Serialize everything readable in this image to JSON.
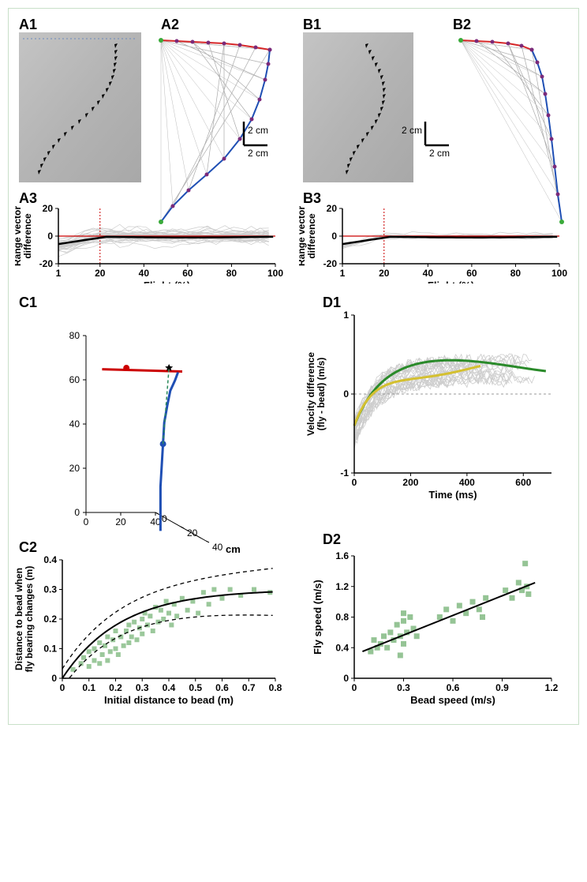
{
  "panelA": {
    "label1": "A1",
    "label2": "A2",
    "label3": "A3",
    "scalebar_x": "2 cm",
    "scalebar_y": "2 cm",
    "trajectory2": {
      "type": "line",
      "red_path": [
        [
          10,
          10
        ],
        [
          30,
          11
        ],
        [
          50,
          12
        ],
        [
          70,
          13
        ],
        [
          90,
          14
        ],
        [
          110,
          16
        ],
        [
          130,
          19
        ],
        [
          148,
          22
        ]
      ],
      "blue_path": [
        [
          148,
          22
        ],
        [
          146,
          40
        ],
        [
          142,
          60
        ],
        [
          135,
          85
        ],
        [
          125,
          110
        ],
        [
          110,
          135
        ],
        [
          90,
          160
        ],
        [
          68,
          180
        ],
        [
          45,
          200
        ],
        [
          25,
          220
        ],
        [
          10,
          240
        ]
      ],
      "red_color": "#d62728",
      "blue_color": "#1f4fb4",
      "marker_color": "#7a2a7a"
    },
    "chart3": {
      "type": "line",
      "xlabel": "Flight (%)",
      "ylabel": "Range vector\ndifference",
      "xlim": [
        1,
        100
      ],
      "ylim": [
        -20,
        20
      ],
      "xticks": [
        1,
        20,
        40,
        60,
        80,
        100
      ],
      "yticks": [
        -20,
        0,
        20
      ],
      "vline_x": 20,
      "vline_color": "#cc0000",
      "hline_y": 0,
      "hline_color": "#cc0000",
      "mean_color": "#000000",
      "trace_color": "#cccccc",
      "n_traces": 40,
      "spread": 18
    }
  },
  "panelB": {
    "label1": "B1",
    "label2": "B2",
    "label3": "B3",
    "scalebar_x": "2 cm",
    "scalebar_y": "2 cm",
    "trajectory2": {
      "red_path": [
        [
          15,
          10
        ],
        [
          35,
          11
        ],
        [
          55,
          12
        ],
        [
          75,
          14
        ],
        [
          92,
          17
        ],
        [
          105,
          22
        ]
      ],
      "blue_path": [
        [
          105,
          22
        ],
        [
          112,
          38
        ],
        [
          118,
          56
        ],
        [
          122,
          78
        ],
        [
          126,
          105
        ],
        [
          130,
          135
        ],
        [
          134,
          170
        ],
        [
          138,
          205
        ],
        [
          143,
          240
        ]
      ],
      "red_color": "#d62728",
      "blue_color": "#1f4fb4",
      "marker_color": "#7a2a7a"
    },
    "chart3": {
      "type": "line",
      "xlabel": "Flight (%)",
      "ylabel": "Range vector\ndifference",
      "xlim": [
        1,
        100
      ],
      "ylim": [
        -20,
        20
      ],
      "xticks": [
        1,
        20,
        40,
        60,
        80,
        100
      ],
      "yticks": [
        -20,
        0,
        20
      ],
      "vline_x": 20,
      "vline_color": "#cc0000",
      "hline_y": 0,
      "hline_color": "#cc0000",
      "mean_color": "#000000",
      "trace_color": "#cccccc",
      "n_traces": 12,
      "spread": 8
    }
  },
  "panelC": {
    "label1": "C1",
    "label2": "C2",
    "axis3d": {
      "x_max": 40,
      "y_max": 40,
      "z_max": 80,
      "xticks": [
        0,
        20,
        40
      ],
      "yticks": [
        0,
        20,
        40
      ],
      "zticks": [
        0,
        20,
        40,
        60,
        80
      ],
      "unit": "cm",
      "red_color": "#cc0000",
      "blue_color": "#1f4fb4",
      "green_color": "#2a8a5a"
    },
    "scatter": {
      "type": "scatter",
      "xlabel": "Initial distance to bead (m)",
      "ylabel": "Distance to bead when\nfly bearing changes (m)",
      "xlim": [
        0,
        0.8
      ],
      "ylim": [
        0,
        0.4
      ],
      "xticks": [
        0,
        0.1,
        0.2,
        0.3,
        0.4,
        0.5,
        0.6,
        0.7,
        0.8
      ],
      "yticks": [
        0,
        0.1,
        0.2,
        0.3,
        0.4
      ],
      "marker_color": "#7ab57a",
      "fit_color": "#000000",
      "ci_color": "#000000",
      "points": [
        [
          0.04,
          0.03
        ],
        [
          0.07,
          0.05
        ],
        [
          0.08,
          0.07
        ],
        [
          0.1,
          0.04
        ],
        [
          0.1,
          0.09
        ],
        [
          0.12,
          0.06
        ],
        [
          0.12,
          0.1
        ],
        [
          0.14,
          0.05
        ],
        [
          0.14,
          0.12
        ],
        [
          0.15,
          0.08
        ],
        [
          0.16,
          0.11
        ],
        [
          0.17,
          0.06
        ],
        [
          0.17,
          0.14
        ],
        [
          0.18,
          0.09
        ],
        [
          0.19,
          0.13
        ],
        [
          0.2,
          0.1
        ],
        [
          0.2,
          0.16
        ],
        [
          0.21,
          0.08
        ],
        [
          0.22,
          0.14
        ],
        [
          0.23,
          0.11
        ],
        [
          0.24,
          0.16
        ],
        [
          0.25,
          0.12
        ],
        [
          0.25,
          0.18
        ],
        [
          0.26,
          0.14
        ],
        [
          0.27,
          0.19
        ],
        [
          0.28,
          0.13
        ],
        [
          0.29,
          0.17
        ],
        [
          0.3,
          0.2
        ],
        [
          0.3,
          0.15
        ],
        [
          0.31,
          0.22
        ],
        [
          0.32,
          0.18
        ],
        [
          0.33,
          0.21
        ],
        [
          0.34,
          0.16
        ],
        [
          0.35,
          0.24
        ],
        [
          0.36,
          0.19
        ],
        [
          0.37,
          0.23
        ],
        [
          0.38,
          0.2
        ],
        [
          0.39,
          0.26
        ],
        [
          0.4,
          0.22
        ],
        [
          0.41,
          0.18
        ],
        [
          0.42,
          0.25
        ],
        [
          0.43,
          0.21
        ],
        [
          0.45,
          0.27
        ],
        [
          0.47,
          0.23
        ],
        [
          0.49,
          0.26
        ],
        [
          0.51,
          0.22
        ],
        [
          0.53,
          0.29
        ],
        [
          0.55,
          0.25
        ],
        [
          0.57,
          0.3
        ],
        [
          0.6,
          0.27
        ],
        [
          0.63,
          0.3
        ],
        [
          0.67,
          0.28
        ],
        [
          0.72,
          0.3
        ],
        [
          0.78,
          0.29
        ]
      ]
    }
  },
  "panelD": {
    "label1": "D1",
    "label2": "D2",
    "velocity": {
      "type": "line",
      "xlabel": "Time (ms)",
      "ylabel": "Velocity difference\n(fly - bead) (m/s)",
      "xlim": [
        0,
        700
      ],
      "ylim": [
        -1,
        1
      ],
      "xticks": [
        0,
        200,
        400,
        600
      ],
      "yticks": [
        -1,
        0,
        1
      ],
      "zero_line_color": "#999999",
      "trace_color": "#cccccc",
      "green_color": "#2a8a2a",
      "yellow_color": "#d4c030"
    },
    "scatter": {
      "type": "scatter",
      "xlabel": "Bead speed (m/s)",
      "ylabel": "Fly speed (m/s)",
      "xlim": [
        0,
        1.2
      ],
      "ylim": [
        0,
        1.6
      ],
      "xticks": [
        0,
        0.3,
        0.6,
        0.9,
        1.2
      ],
      "yticks": [
        0,
        0.4,
        0.8,
        1.2,
        1.6
      ],
      "marker_color": "#7ab57a",
      "fit_color": "#000000",
      "points": [
        [
          0.1,
          0.35
        ],
        [
          0.12,
          0.5
        ],
        [
          0.14,
          0.4
        ],
        [
          0.16,
          0.45
        ],
        [
          0.18,
          0.55
        ],
        [
          0.2,
          0.4
        ],
        [
          0.22,
          0.6
        ],
        [
          0.24,
          0.5
        ],
        [
          0.26,
          0.7
        ],
        [
          0.28,
          0.55
        ],
        [
          0.3,
          0.45
        ],
        [
          0.3,
          0.75
        ],
        [
          0.28,
          0.3
        ],
        [
          0.3,
          0.85
        ],
        [
          0.32,
          0.6
        ],
        [
          0.34,
          0.8
        ],
        [
          0.36,
          0.65
        ],
        [
          0.38,
          0.55
        ],
        [
          0.52,
          0.8
        ],
        [
          0.56,
          0.9
        ],
        [
          0.6,
          0.75
        ],
        [
          0.64,
          0.95
        ],
        [
          0.68,
          0.85
        ],
        [
          0.72,
          1.0
        ],
        [
          0.76,
          0.9
        ],
        [
          0.78,
          0.8
        ],
        [
          0.8,
          1.05
        ],
        [
          0.92,
          1.15
        ],
        [
          0.96,
          1.05
        ],
        [
          1.0,
          1.25
        ],
        [
          1.02,
          1.15
        ],
        [
          1.04,
          1.5
        ],
        [
          1.05,
          1.2
        ],
        [
          1.06,
          1.1
        ]
      ]
    }
  },
  "colors": {
    "panel_border": "#c8e0c8",
    "photo_bg": "#b8b8b8",
    "axis": "#000000"
  },
  "fonts": {
    "label_size": 18,
    "axis_title_size": 13,
    "tick_size": 12,
    "label_weight": "bold"
  }
}
